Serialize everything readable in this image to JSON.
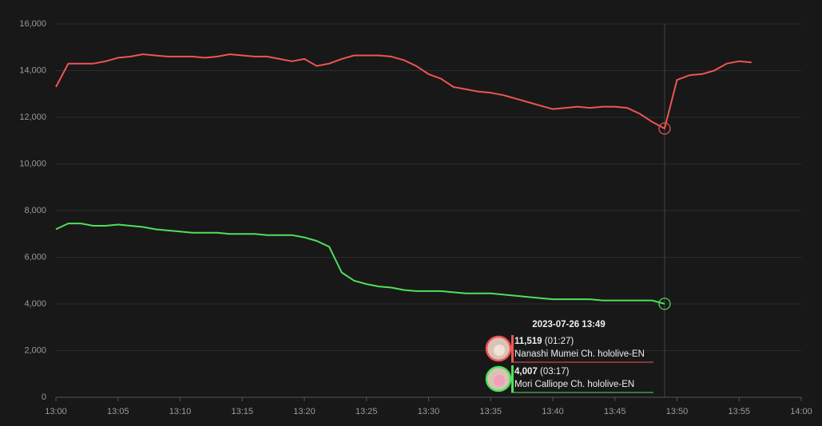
{
  "chart_data": {
    "type": "line",
    "x": [
      "13:00",
      "13:01",
      "13:02",
      "13:03",
      "13:04",
      "13:05",
      "13:06",
      "13:07",
      "13:08",
      "13:09",
      "13:10",
      "13:11",
      "13:12",
      "13:13",
      "13:14",
      "13:15",
      "13:16",
      "13:17",
      "13:18",
      "13:19",
      "13:20",
      "13:21",
      "13:22",
      "13:23",
      "13:24",
      "13:25",
      "13:26",
      "13:27",
      "13:28",
      "13:29",
      "13:30",
      "13:31",
      "13:32",
      "13:33",
      "13:34",
      "13:35",
      "13:36",
      "13:37",
      "13:38",
      "13:39",
      "13:40",
      "13:41",
      "13:42",
      "13:43",
      "13:44",
      "13:45",
      "13:46",
      "13:47",
      "13:48",
      "13:49",
      "13:50",
      "13:51",
      "13:52",
      "13:53",
      "13:54",
      "13:55",
      "13:56"
    ],
    "series": [
      {
        "name": "Nanashi Mumei Ch. hololive-EN",
        "color": "#f05454",
        "values": [
          13300,
          14300,
          14300,
          14300,
          14400,
          14550,
          14600,
          14700,
          14650,
          14600,
          14600,
          14600,
          14550,
          14600,
          14700,
          14650,
          14600,
          14600,
          14500,
          14400,
          14500,
          14200,
          14300,
          14500,
          14650,
          14650,
          14650,
          14600,
          14450,
          14200,
          13850,
          13650,
          13300,
          13200,
          13100,
          13050,
          12950,
          12800,
          12650,
          12500,
          12350,
          12400,
          12450,
          12400,
          12450,
          12450,
          12400,
          12150,
          11800,
          11519,
          13600,
          13800,
          13850,
          14000,
          14300,
          14400,
          14350
        ]
      },
      {
        "name": "Mori Calliope Ch. hololive-EN",
        "color": "#4ee05c",
        "values": [
          7200,
          7450,
          7450,
          7350,
          7350,
          7400,
          7350,
          7300,
          7200,
          7150,
          7100,
          7050,
          7050,
          7050,
          7000,
          7000,
          7000,
          6950,
          6950,
          6950,
          6850,
          6700,
          6450,
          5350,
          5000,
          4850,
          4750,
          4700,
          4600,
          4550,
          4550,
          4550,
          4500,
          4450,
          4450,
          4450,
          4400,
          4350,
          4300,
          4250,
          4200,
          4200,
          4200,
          4200,
          4150,
          4150,
          4150,
          4150,
          4150,
          4007,
          null,
          null,
          null,
          null,
          null,
          null,
          null
        ]
      }
    ],
    "xlim": [
      "13:00",
      "14:00"
    ],
    "xticks": [
      "13:00",
      "13:05",
      "13:10",
      "13:15",
      "13:20",
      "13:25",
      "13:30",
      "13:35",
      "13:40",
      "13:45",
      "13:50",
      "13:55",
      "14:00"
    ],
    "ylim": [
      0,
      16000
    ],
    "yticks": [
      0,
      {
        "value": 2000,
        "label": "2,000"
      },
      {
        "value": 4000,
        "label": "4,000"
      },
      {
        "value": 6000,
        "label": "6,000"
      },
      {
        "value": 8000,
        "label": "8,000"
      },
      {
        "value": 10000,
        "label": "10,000"
      },
      {
        "value": 12000,
        "label": "12,000"
      },
      {
        "value": 14000,
        "label": "14,000"
      },
      {
        "value": 16000,
        "label": "16,000"
      }
    ],
    "grid": true,
    "tooltip": {
      "title": "2023-07-26 13:49",
      "entries": [
        {
          "label": "11,519",
          "extra": "(01:27)"
        },
        {
          "label": "4,007",
          "extra": "(03:17)"
        }
      ]
    }
  }
}
